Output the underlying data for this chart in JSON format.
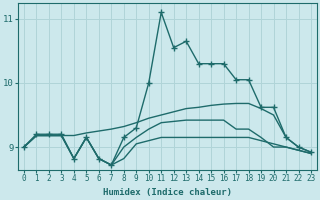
{
  "xlabel": "Humidex (Indice chaleur)",
  "background_color": "#cce8ec",
  "grid_color": "#b0d4d8",
  "line_color": "#1e6b6b",
  "xlim": [
    -0.5,
    23.5
  ],
  "ylim": [
    8.65,
    11.25
  ],
  "xticks": [
    0,
    1,
    2,
    3,
    4,
    5,
    6,
    7,
    8,
    9,
    10,
    11,
    12,
    13,
    14,
    15,
    16,
    17,
    18,
    19,
    20,
    21,
    22,
    23
  ],
  "yticks": [
    9,
    10,
    11
  ],
  "lines": [
    {
      "x": [
        0,
        1,
        2,
        3,
        4,
        5,
        6,
        7,
        8,
        9,
        10,
        11,
        12,
        13,
        14,
        15,
        16,
        17,
        18,
        19,
        20,
        21,
        22,
        23
      ],
      "y": [
        9.0,
        9.2,
        9.2,
        9.2,
        8.82,
        9.15,
        8.82,
        8.72,
        9.15,
        9.3,
        10.0,
        11.1,
        10.55,
        10.65,
        10.3,
        10.3,
        10.3,
        10.05,
        10.05,
        9.62,
        9.62,
        9.15,
        9.0,
        8.92
      ],
      "marker": "+",
      "markersize": 4,
      "linewidth": 1.0
    },
    {
      "x": [
        0,
        1,
        2,
        3,
        4,
        5,
        6,
        7,
        8,
        9,
        10,
        11,
        12,
        13,
        14,
        15,
        16,
        17,
        18,
        19,
        20,
        21,
        22,
        23
      ],
      "y": [
        9.0,
        9.18,
        9.18,
        9.18,
        9.18,
        9.22,
        9.25,
        9.28,
        9.32,
        9.38,
        9.45,
        9.5,
        9.55,
        9.6,
        9.62,
        9.65,
        9.67,
        9.68,
        9.68,
        9.6,
        9.5,
        9.15,
        9.0,
        8.92
      ],
      "marker": null,
      "markersize": 0,
      "linewidth": 1.0
    },
    {
      "x": [
        0,
        1,
        2,
        3,
        4,
        5,
        6,
        7,
        8,
        9,
        10,
        11,
        12,
        13,
        14,
        15,
        16,
        17,
        18,
        19,
        20,
        21,
        22,
        23
      ],
      "y": [
        9.0,
        9.18,
        9.18,
        9.18,
        8.82,
        9.15,
        8.82,
        8.72,
        8.82,
        9.05,
        9.1,
        9.15,
        9.15,
        9.15,
        9.15,
        9.15,
        9.15,
        9.15,
        9.15,
        9.1,
        9.05,
        9.0,
        8.95,
        8.9
      ],
      "marker": null,
      "markersize": 0,
      "linewidth": 1.0
    },
    {
      "x": [
        0,
        1,
        2,
        3,
        4,
        5,
        6,
        7,
        8,
        9,
        10,
        11,
        12,
        13,
        14,
        15,
        16,
        17,
        18,
        19,
        20,
        21,
        22,
        23
      ],
      "y": [
        9.0,
        9.18,
        9.18,
        9.18,
        8.82,
        9.15,
        8.82,
        8.72,
        9.0,
        9.15,
        9.28,
        9.38,
        9.4,
        9.42,
        9.42,
        9.42,
        9.42,
        9.28,
        9.28,
        9.15,
        9.0,
        9.0,
        8.95,
        8.9
      ],
      "marker": null,
      "markersize": 0,
      "linewidth": 1.0
    }
  ]
}
